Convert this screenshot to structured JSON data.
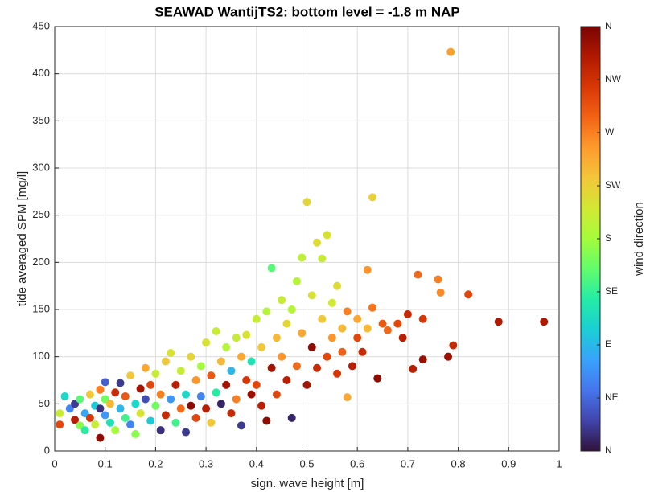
{
  "chart_data": {
    "type": "scatter",
    "title": "SEAWAD WantijTS2: bottom level = -1.8 m NAP",
    "x_label": "sign. wave height [m]",
    "y_label": "tide averaged SPM [mg/l]",
    "colorbar_label": "wind direction",
    "x": [
      0.01,
      0.01,
      0.02,
      0.03,
      0.04,
      0.04,
      0.05,
      0.05,
      0.06,
      0.06,
      0.07,
      0.07,
      0.08,
      0.08,
      0.09,
      0.09,
      0.09,
      0.1,
      0.1,
      0.1,
      0.11,
      0.11,
      0.12,
      0.12,
      0.13,
      0.13,
      0.14,
      0.14,
      0.15,
      0.15,
      0.16,
      0.16,
      0.17,
      0.17,
      0.18,
      0.18,
      0.19,
      0.19,
      0.2,
      0.2,
      0.21,
      0.21,
      0.22,
      0.22,
      0.23,
      0.23,
      0.24,
      0.24,
      0.25,
      0.25,
      0.26,
      0.26,
      0.27,
      0.27,
      0.28,
      0.28,
      0.29,
      0.29,
      0.3,
      0.3,
      0.31,
      0.31,
      0.32,
      0.32,
      0.33,
      0.33,
      0.34,
      0.34,
      0.35,
      0.35,
      0.36,
      0.36,
      0.37,
      0.37,
      0.38,
      0.38,
      0.39,
      0.39,
      0.4,
      0.4,
      0.41,
      0.41,
      0.42,
      0.42,
      0.43,
      0.43,
      0.44,
      0.44,
      0.45,
      0.45,
      0.46,
      0.46,
      0.47,
      0.47,
      0.48,
      0.48,
      0.49,
      0.49,
      0.5,
      0.5,
      0.51,
      0.51,
      0.52,
      0.52,
      0.53,
      0.53,
      0.54,
      0.54,
      0.55,
      0.55,
      0.56,
      0.56,
      0.57,
      0.57,
      0.58,
      0.58,
      0.59,
      0.6,
      0.6,
      0.61,
      0.62,
      0.62,
      0.63,
      0.63,
      0.64,
      0.65,
      0.66,
      0.68,
      0.69,
      0.7,
      0.71,
      0.72,
      0.73,
      0.73,
      0.76,
      0.765,
      0.78,
      0.785,
      0.79,
      0.82,
      0.88,
      0.97
    ],
    "values": [
      28,
      40,
      58,
      45,
      33,
      50,
      27,
      55,
      40,
      22,
      60,
      35,
      48,
      28,
      45,
      65,
      14,
      55,
      38,
      73,
      30,
      50,
      62,
      22,
      45,
      72,
      35,
      58,
      28,
      80,
      50,
      18,
      66,
      40,
      88,
      55,
      32,
      70,
      48,
      82,
      22,
      60,
      38,
      95,
      55,
      104,
      30,
      70,
      45,
      85,
      20,
      60,
      48,
      100,
      75,
      35,
      90,
      58,
      115,
      45,
      30,
      80,
      127,
      62,
      50,
      95,
      70,
      110,
      40,
      85,
      120,
      55,
      27,
      100,
      75,
      123,
      60,
      95,
      140,
      70,
      110,
      48,
      32,
      148,
      194,
      88,
      120,
      60,
      160,
      100,
      75,
      135,
      35,
      150,
      180,
      90,
      205,
      125,
      264,
      70,
      110,
      165,
      221,
      88,
      140,
      204,
      229,
      100,
      157,
      120,
      175,
      82,
      130,
      105,
      57,
      148,
      90,
      120,
      140,
      105,
      192,
      130,
      269,
      152,
      77,
      135,
      128,
      135,
      120,
      145,
      87,
      187,
      97,
      140,
      182,
      168,
      100,
      423,
      112,
      166,
      137,
      137
    ],
    "wind_direction": [
      300,
      200,
      110,
      60,
      330,
      20,
      170,
      150,
      80,
      130,
      230,
      310,
      100,
      200,
      15,
      270,
      350,
      160,
      70,
      40,
      120,
      240,
      320,
      180,
      90,
      20,
      140,
      290,
      60,
      230,
      110,
      170,
      340,
      210,
      250,
      30,
      100,
      300,
      160,
      200,
      15,
      270,
      320,
      230,
      70,
      210,
      140,
      330,
      280,
      200,
      20,
      110,
      350,
      220,
      260,
      300,
      180,
      60,
      210,
      330,
      230,
      290,
      200,
      130,
      10,
      240,
      340,
      190,
      320,
      90,
      200,
      270,
      20,
      250,
      310,
      210,
      345,
      120,
      200,
      300,
      230,
      330,
      350,
      190,
      150,
      340,
      240,
      300,
      200,
      260,
      330,
      220,
      10,
      190,
      190,
      280,
      195,
      250,
      220,
      340,
      350,
      210,
      215,
      320,
      230,
      200,
      210,
      300,
      205,
      260,
      215,
      310,
      240,
      285,
      250,
      270,
      330,
      300,
      250,
      320,
      260,
      240,
      225,
      275,
      350,
      290,
      280,
      300,
      330,
      320,
      330,
      280,
      345,
      310,
      270,
      265,
      345,
      255,
      320,
      300,
      335,
      335
    ],
    "colormap": [
      "#30123b",
      "#4145ab",
      "#4675ed",
      "#39a2fc",
      "#1bcfd4",
      "#24eca6",
      "#61fc6c",
      "#a4fc3b",
      "#d1e834",
      "#f3c63a",
      "#fe9b2d",
      "#f36315",
      "#d93806",
      "#b11901",
      "#7a0402"
    ],
    "xlim": [
      0,
      1
    ],
    "xticks": [
      0,
      0.1,
      0.2,
      0.3,
      0.4,
      0.5,
      0.6,
      0.7,
      0.8,
      0.9,
      1
    ],
    "ylim": [
      0,
      450
    ],
    "yticks": [
      0,
      50,
      100,
      150,
      200,
      250,
      300,
      350,
      400,
      450
    ],
    "clim": [
      0,
      360
    ],
    "cticks": [
      {
        "value": 0,
        "label": "N"
      },
      {
        "value": 45,
        "label": "NE"
      },
      {
        "value": 90,
        "label": "E"
      },
      {
        "value": 135,
        "label": "SE"
      },
      {
        "value": 180,
        "label": "S"
      },
      {
        "value": 225,
        "label": "SW"
      },
      {
        "value": 270,
        "label": "W"
      },
      {
        "value": 315,
        "label": "NW"
      },
      {
        "value": 360,
        "label": "N"
      }
    ],
    "grid": true
  }
}
